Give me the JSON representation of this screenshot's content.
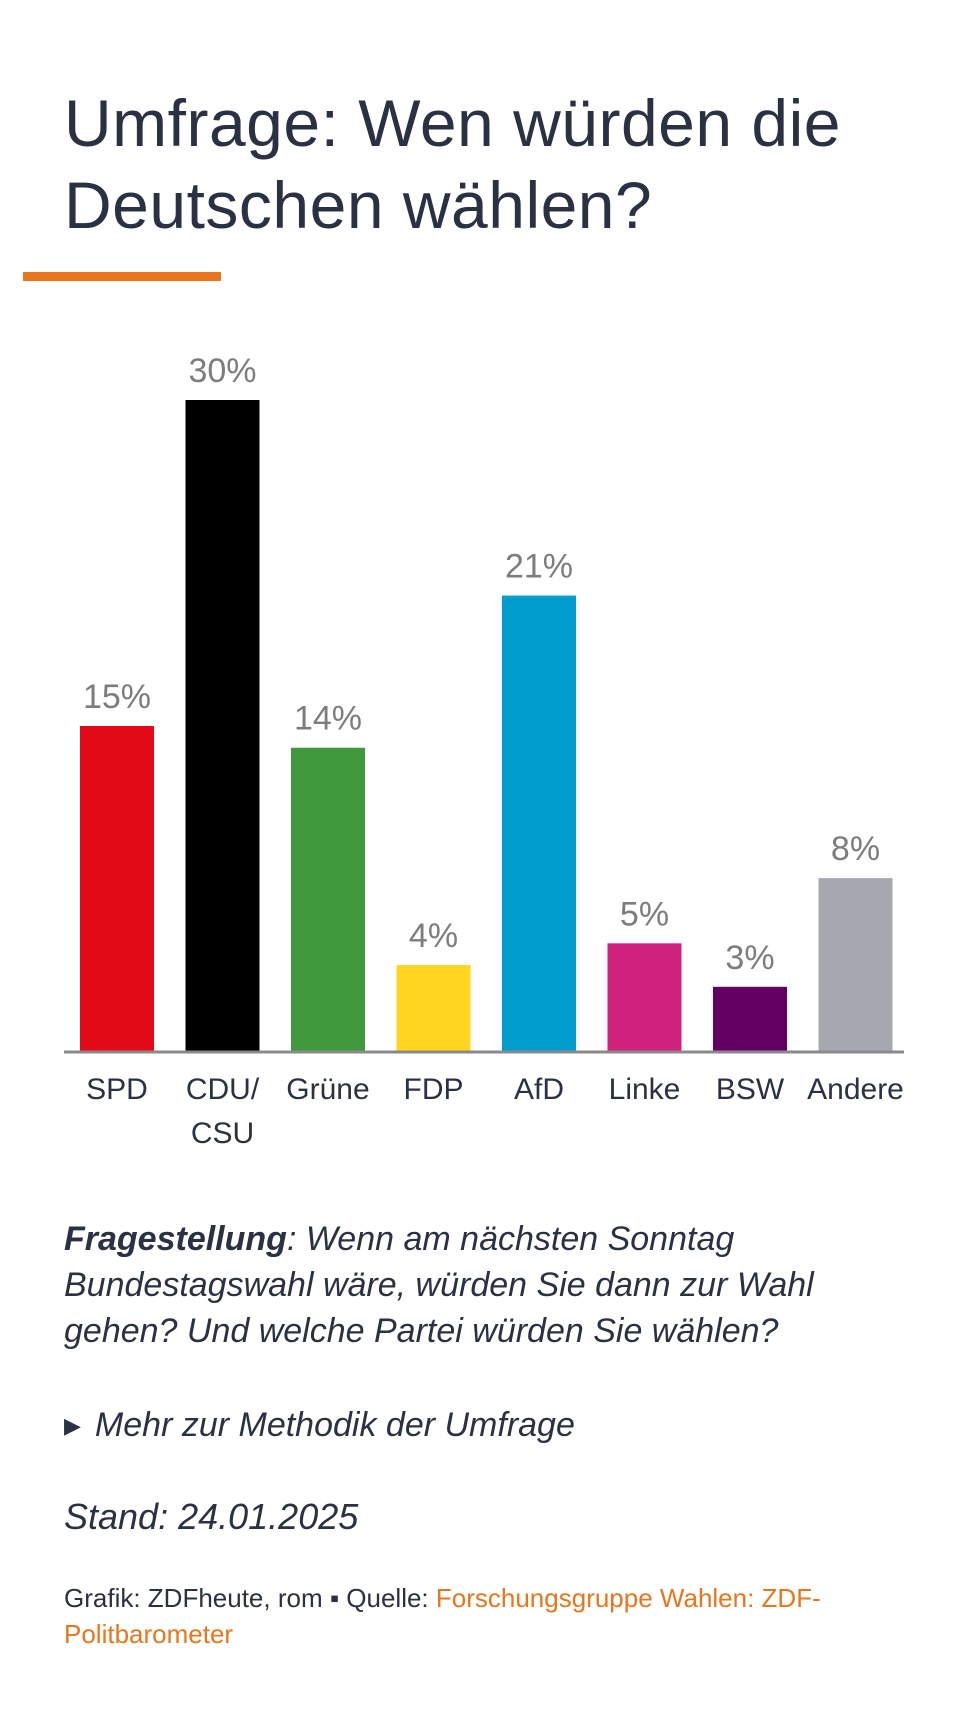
{
  "title": "Umfrage: Wen würden die Deutschen wählen?",
  "colors": {
    "accent": "#e8761e",
    "axis": "#8a8a8a",
    "value_label": "#7d7d7d"
  },
  "chart_data": {
    "type": "bar",
    "categories": [
      "SPD",
      "CDU/\nCSU",
      "Grüne",
      "FDP",
      "AfD",
      "Linke",
      "BSW",
      "Andere"
    ],
    "values": [
      15,
      30,
      14,
      4,
      21,
      5,
      3,
      8
    ],
    "value_labels": [
      "15%",
      "30%",
      "14%",
      "4%",
      "21%",
      "5%",
      "3%",
      "8%"
    ],
    "colors": [
      "#e30a17",
      "#000000",
      "#409a3c",
      "#ffd51f",
      "#009ccd",
      "#d0237e",
      "#640064",
      "#a5a8ae"
    ],
    "unit": "%",
    "ylim": [
      0,
      30
    ],
    "grid": false,
    "legend": "none"
  },
  "question": {
    "label": "Fragestellung",
    "text": ": Wenn am nächsten Sonntag Bundestagswahl wäre, würden Sie dann zur Wahl gehen? Und welche Partei würden Sie wählen?"
  },
  "method_link": {
    "icon": "triangle-right-icon",
    "label": "Mehr zur Methodik der Umfrage"
  },
  "stand": "Stand: 24.01.2025",
  "credits": {
    "prefix": "Grafik: ZDFheute, rom ▪ Quelle: ",
    "source": "Forschungsgruppe Wahlen: ZDF-Politbarometer"
  }
}
